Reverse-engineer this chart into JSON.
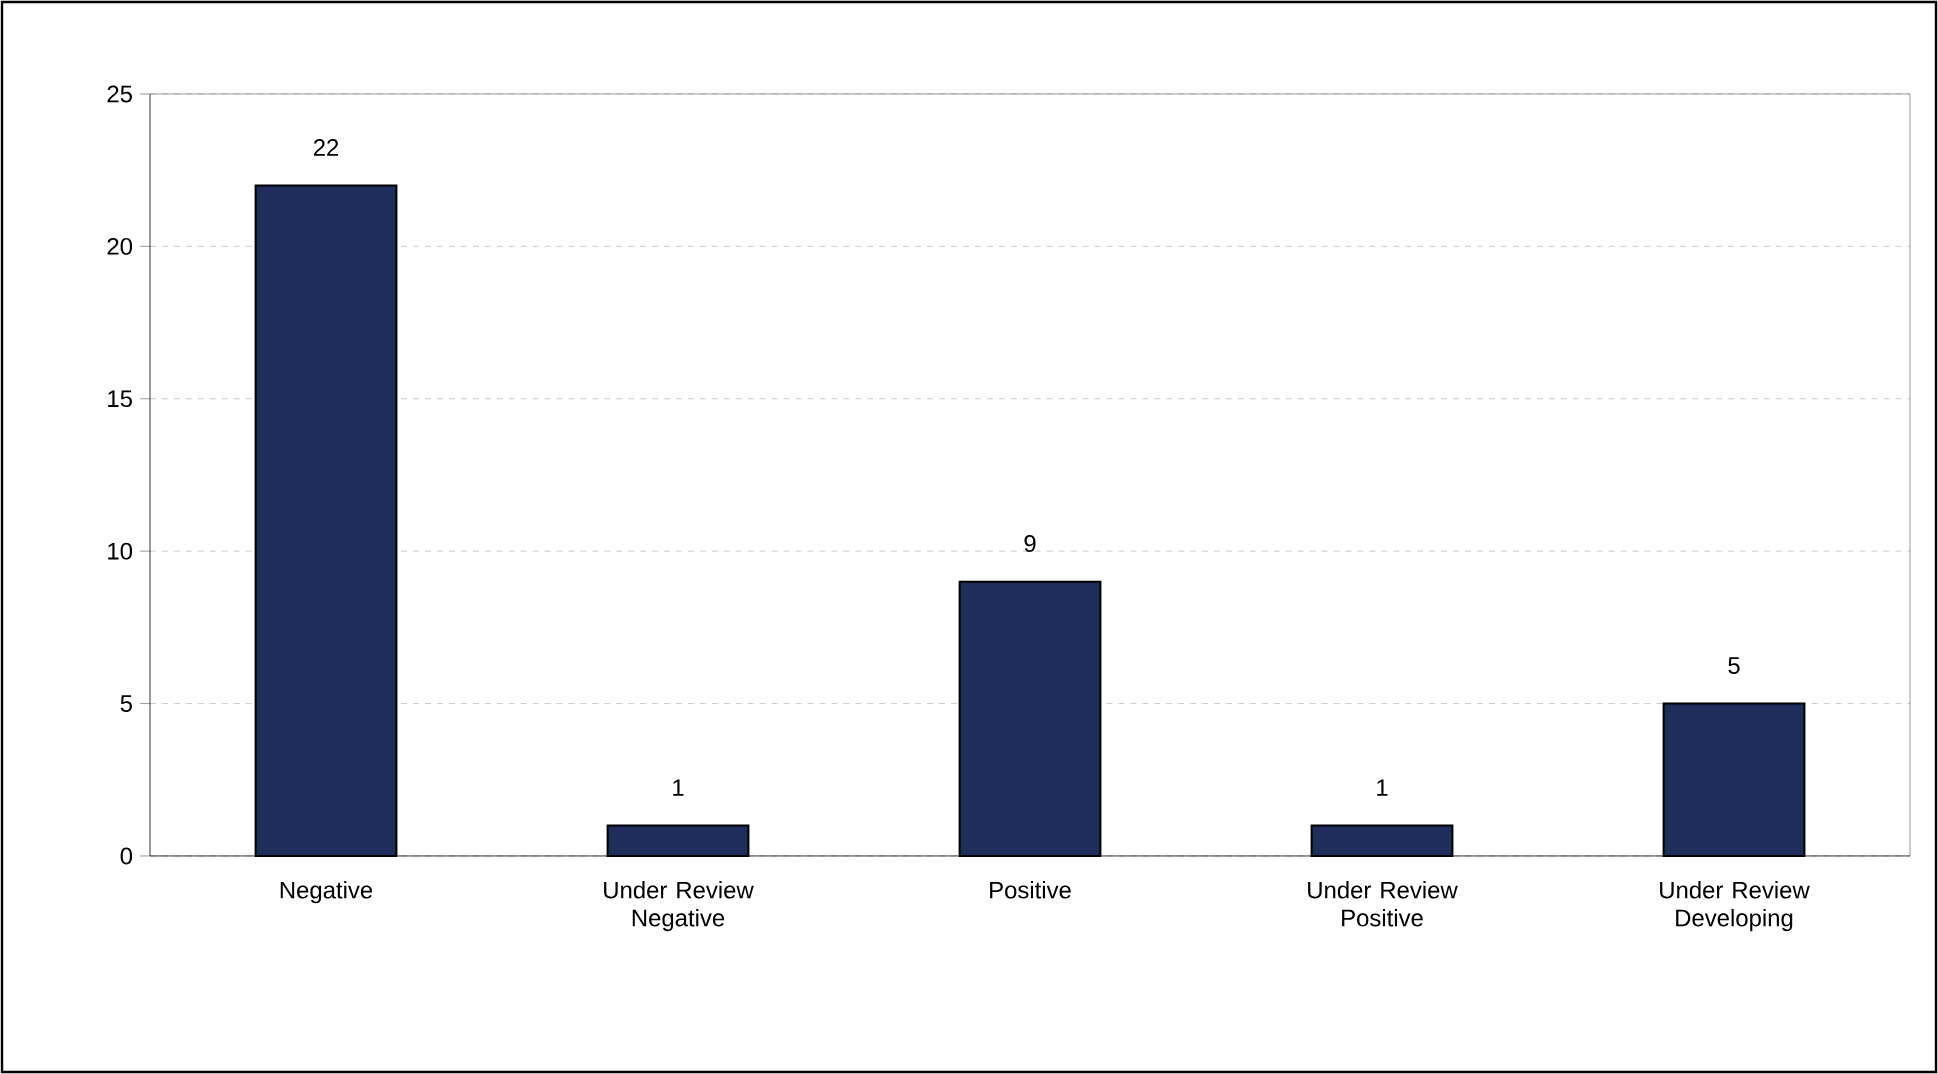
{
  "chart_data": {
    "type": "bar",
    "categories": [
      "Negative",
      "Under Review Negative",
      "Positive",
      "Under Review Positive",
      "Under Review Developing"
    ],
    "values": [
      22,
      1,
      9,
      1,
      5
    ],
    "color": "#1f2d5c",
    "ylim": [
      0,
      25
    ],
    "yticks": [
      0,
      5,
      10,
      15,
      20,
      25
    ],
    "grid": "y",
    "data_labels": true
  }
}
